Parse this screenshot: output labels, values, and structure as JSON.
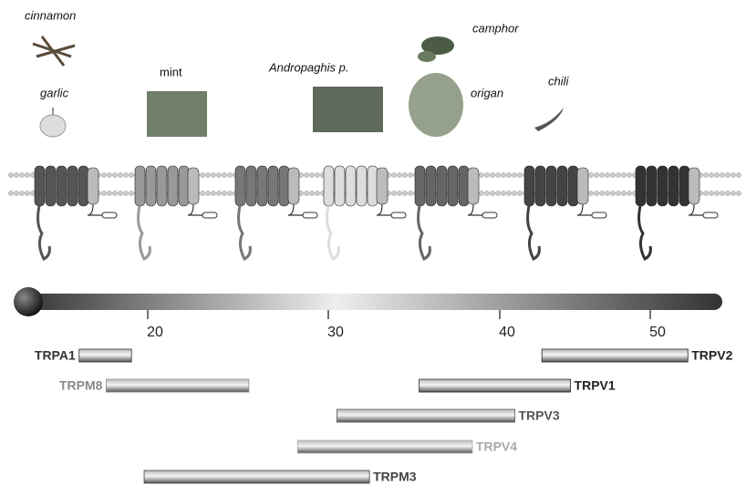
{
  "plants": [
    {
      "label": "cinnamon"
    },
    {
      "label": "garlic"
    },
    {
      "label": "mint"
    },
    {
      "label": "Andropaghis p."
    },
    {
      "label": "camphor"
    },
    {
      "label": "origan"
    },
    {
      "label": "chili"
    }
  ],
  "temperature_axis": {
    "ticks": [
      20,
      30,
      40,
      50
    ]
  },
  "channels": [
    {
      "name": "TRPA1",
      "range": [
        16.2,
        19.1
      ],
      "color": "#333333"
    },
    {
      "name": "TRPM8",
      "range": [
        17.7,
        25.6
      ],
      "color": "#8a8a8a"
    },
    {
      "name": "TRPV1",
      "range": [
        35.3,
        44.7
      ],
      "color": "#222222"
    },
    {
      "name": "TRPV2",
      "range": [
        42.8,
        52.5
      ],
      "color": "#222222"
    },
    {
      "name": "TRPV3",
      "range": [
        30.5,
        41.0
      ],
      "color": "#555555"
    },
    {
      "name": "TRPV4",
      "range": [
        28.3,
        38.4
      ],
      "color": "#aaaaaa"
    },
    {
      "name": "TRPM3",
      "range": [
        19.8,
        32.4
      ],
      "color": "#444444"
    }
  ]
}
